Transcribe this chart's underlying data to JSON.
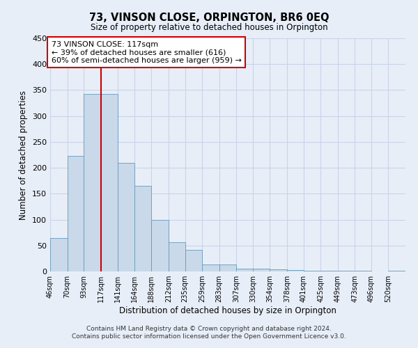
{
  "title": "73, VINSON CLOSE, ORPINGTON, BR6 0EQ",
  "subtitle": "Size of property relative to detached houses in Orpington",
  "xlabel": "Distribution of detached houses by size in Orpington",
  "ylabel": "Number of detached properties",
  "bar_labels": [
    "46sqm",
    "70sqm",
    "93sqm",
    "117sqm",
    "141sqm",
    "164sqm",
    "188sqm",
    "212sqm",
    "235sqm",
    "259sqm",
    "283sqm",
    "307sqm",
    "330sqm",
    "354sqm",
    "378sqm",
    "401sqm",
    "425sqm",
    "449sqm",
    "473sqm",
    "496sqm",
    "520sqm"
  ],
  "bar_heights": [
    65,
    223,
    343,
    343,
    210,
    165,
    99,
    57,
    42,
    14,
    14,
    6,
    5,
    4,
    3,
    2,
    2,
    1,
    1,
    0,
    2
  ],
  "bin_edges": [
    46,
    70,
    93,
    117,
    141,
    164,
    188,
    212,
    235,
    259,
    283,
    307,
    330,
    354,
    378,
    401,
    425,
    449,
    473,
    496,
    520
  ],
  "property_size": 117,
  "bar_color": "#c9d9ea",
  "bar_edge_color": "#6699bb",
  "vline_color": "#cc0000",
  "annotation_text": "73 VINSON CLOSE: 117sqm\n← 39% of detached houses are smaller (616)\n60% of semi-detached houses are larger (959) →",
  "annotation_box_color": "#ffffff",
  "annotation_box_edge_color": "#cc0000",
  "ylim": [
    0,
    450
  ],
  "yticks": [
    0,
    50,
    100,
    150,
    200,
    250,
    300,
    350,
    400,
    450
  ],
  "footer_line1": "Contains HM Land Registry data © Crown copyright and database right 2024.",
  "footer_line2": "Contains public sector information licensed under the Open Government Licence v3.0.",
  "grid_color": "#c8d4e8",
  "background_color": "#e8eef8",
  "plot_bg_color": "#e8eef8"
}
